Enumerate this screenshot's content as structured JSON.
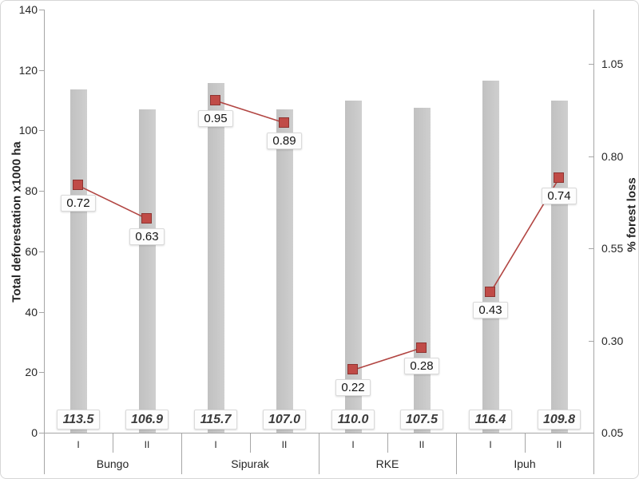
{
  "chart_data": {
    "type": "bar",
    "subtype": "combo-bar-line-dual-axis",
    "groups": [
      "Bungo",
      "Sipurak",
      "RKE",
      "Ipuh"
    ],
    "categories": [
      "I",
      "II"
    ],
    "series": [
      {
        "name": "Total deforestation x1000 ha",
        "type": "bar",
        "axis": "left",
        "values": [
          113.5,
          106.9,
          115.7,
          107.0,
          110.0,
          107.5,
          116.4,
          109.8
        ],
        "labels": [
          "113.5",
          "106.9",
          "115.7",
          "107.0",
          "110.0",
          "107.5",
          "116.4",
          "109.8"
        ]
      },
      {
        "name": "% forest loss",
        "type": "line",
        "axis": "right",
        "values": [
          0.72,
          0.63,
          0.95,
          0.89,
          0.22,
          0.28,
          0.43,
          0.74
        ],
        "labels": [
          "0.72",
          "0.63",
          "0.95",
          "0.89",
          "0.22",
          "0.28",
          "0.43",
          "0.74"
        ]
      }
    ],
    "left_axis": {
      "label": "Total deforestation x1000 ha",
      "ticks": [
        0,
        20,
        40,
        60,
        80,
        100,
        120,
        140
      ],
      "tick_labels": [
        "0",
        "20",
        "40",
        "60",
        "80",
        "100",
        "120",
        "140"
      ],
      "range": [
        0,
        140
      ]
    },
    "right_axis": {
      "label": "% forest loss",
      "ticks": [
        0.05,
        0.3,
        0.55,
        0.8,
        1.05
      ],
      "tick_labels": [
        "0.05",
        "0.30",
        "0.55",
        "0.80",
        "1.05"
      ],
      "range": [
        0.05,
        1.05
      ]
    },
    "legend": "none",
    "grid": "off",
    "colors": {
      "bar": "#c7c7c7",
      "marker_fill": "#c04b47",
      "marker_border": "#8e3431",
      "line": "#b24643",
      "axis": "#a6a6a6",
      "text": "#262626",
      "label_box_bg": "#fdfdfd",
      "label_box_border": "#dadada"
    }
  }
}
